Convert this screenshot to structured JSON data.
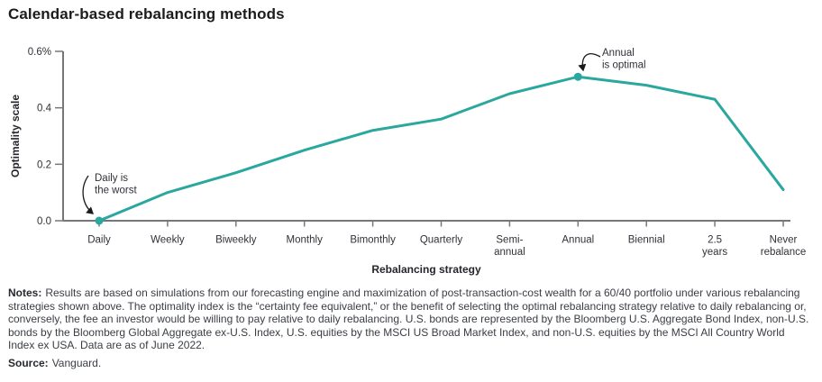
{
  "title": "Calendar-based rebalancing methods",
  "chart_data": {
    "type": "line",
    "title": "Calendar-based rebalancing methods",
    "xlabel": "Rebalancing strategy",
    "ylabel": "Optimality scale",
    "categories": [
      "Daily",
      "Weekly",
      "Biweekly",
      "Monthly",
      "Bimonthly",
      "Quarterly",
      "Semi-annual",
      "Annual",
      "Biennial",
      "2.5 years",
      "Never rebalance"
    ],
    "x_tick_lines": [
      [
        "Daily"
      ],
      [
        "Weekly"
      ],
      [
        "Biweekly"
      ],
      [
        "Monthly"
      ],
      [
        "Bimonthly"
      ],
      [
        "Quarterly"
      ],
      [
        "Semi-",
        "annual"
      ],
      [
        "Annual"
      ],
      [
        "Biennial"
      ],
      [
        "2.5",
        "years"
      ],
      [
        "Never",
        "rebalance"
      ]
    ],
    "values": [
      0.0,
      0.1,
      0.17,
      0.25,
      0.32,
      0.36,
      0.45,
      0.51,
      0.48,
      0.43,
      0.11
    ],
    "ylim": [
      0,
      0.6
    ],
    "yticks": [
      0.0,
      0.2,
      0.4,
      0.6
    ],
    "ytick_labels": [
      "0.0",
      "0.2",
      "0.4",
      "0.6%"
    ],
    "grid": false,
    "legend": "none",
    "line_color": "#2aa79e",
    "axis_color": "#76777a",
    "marker_indices": [
      0,
      7
    ],
    "annotations": [
      {
        "target": "Daily",
        "text_lines": [
          "Daily is",
          "the worst"
        ]
      },
      {
        "target": "Annual",
        "text_lines": [
          "Annual",
          "is optimal"
        ]
      }
    ]
  },
  "notes": {
    "label": "Notes:",
    "text": "Results are based on simulations from our forecasting engine and maximization of post-transaction-cost wealth for a 60/40 portfolio under various rebalancing strategies shown above. The optimality index is the “certainty fee equivalent,” or the benefit of selecting the optimal rebalancing strategy relative to daily rebalancing or, conversely, the fee an investor would be willing to pay relative to daily rebalancing. U.S. bonds are represented by the Bloomberg U.S. Aggregate Bond Index, non-U.S. bonds by the Bloomberg Global Aggregate ex-U.S. Index, U.S. equities by the MSCI US Broad Market Index, and non-U.S. equities by the MSCI All Country World Index ex USA. Data are as of June 2022.",
    "source_label": "Source:",
    "source_text": "Vanguard."
  }
}
